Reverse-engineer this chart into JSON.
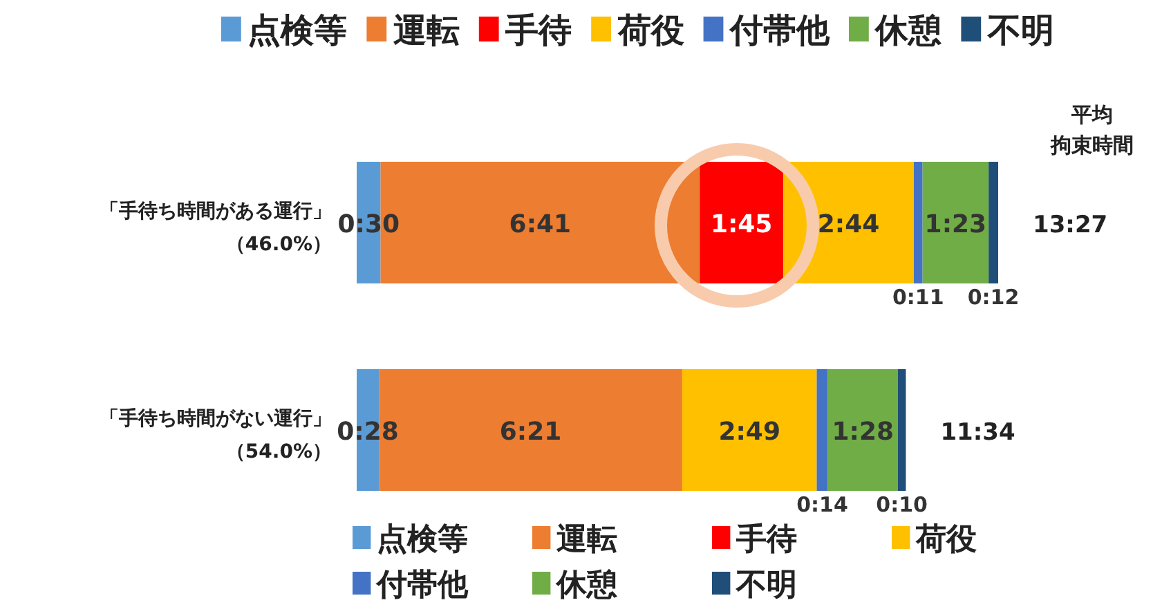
{
  "chart_data": {
    "type": "bar",
    "orientation": "horizontal",
    "stacked": true,
    "legend": "top",
    "categories": [
      "「手待ち時間がある運行」（46.0%）",
      "「手待ち時間がない運行」（54.0%）"
    ],
    "series": [
      {
        "name": "点検等",
        "color": "#5b9bd5",
        "values": [
          30,
          28
        ],
        "value_labels": [
          "0:30",
          "0:28"
        ]
      },
      {
        "name": "運転",
        "color": "#ed7d31",
        "values": [
          401,
          381
        ],
        "value_labels": [
          "6:41",
          "6:21"
        ]
      },
      {
        "name": "手待",
        "color": "#ff0000",
        "values": [
          105,
          null
        ],
        "value_labels": [
          "1:45",
          null
        ]
      },
      {
        "name": "荷役",
        "color": "#ffc000",
        "values": [
          164,
          169
        ],
        "value_labels": [
          "2:44",
          "2:49"
        ]
      },
      {
        "name": "付帯他",
        "color": "#4472c4",
        "values": [
          11,
          14
        ],
        "value_labels": [
          "0:11",
          "0:14"
        ]
      },
      {
        "name": "休憩",
        "color": "#70ad47",
        "values": [
          83,
          88
        ],
        "value_labels": [
          "1:23",
          "1:28"
        ]
      },
      {
        "name": "不明",
        "color": "#1f4e79",
        "values": [
          12,
          10
        ],
        "value_labels": [
          "0:12",
          "0:10"
        ]
      }
    ],
    "totals": [
      "13:27",
      "11:34"
    ],
    "annotations": [
      "平均",
      "拘束時間"
    ]
  }
}
